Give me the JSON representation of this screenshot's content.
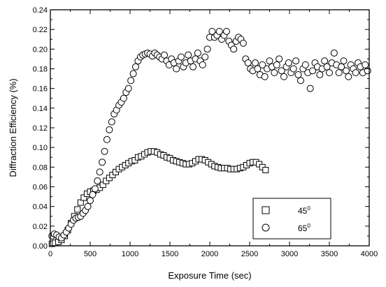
{
  "chart_data": {
    "type": "scatter",
    "title": "",
    "xlabel": "Exposure Time (sec)",
    "ylabel": "Diffraction Efficiency (%)",
    "xlim": [
      0,
      4000
    ],
    "ylim": [
      0,
      0.24
    ],
    "x_ticks": [
      0,
      500,
      1000,
      1500,
      2000,
      2500,
      3000,
      3500,
      4000
    ],
    "x_tick_labels": [
      "0",
      "500",
      "1000",
      "1500",
      "2000",
      "2500",
      "3000",
      "3500",
      "4000"
    ],
    "y_ticks": [
      0.0,
      0.02,
      0.04,
      0.06,
      0.08,
      0.1,
      0.12,
      0.14,
      0.16,
      0.18,
      0.2,
      0.22,
      0.24
    ],
    "y_tick_labels": [
      "0.00",
      "0.02",
      "0.04",
      "0.06",
      "0.08",
      "0.10",
      "0.12",
      "0.14",
      "0.16",
      "0.18",
      "0.20",
      "0.22",
      "0.24"
    ],
    "grid": false,
    "legend_position": "bottom-right",
    "series": [
      {
        "name": "45°",
        "name_base": "45",
        "name_sup": "0",
        "marker": "square",
        "points": [
          [
            20,
            0.002
          ],
          [
            60,
            0.003
          ],
          [
            100,
            0.004
          ],
          [
            140,
            0.006
          ],
          [
            180,
            0.01
          ],
          [
            220,
            0.016
          ],
          [
            260,
            0.023
          ],
          [
            300,
            0.03
          ],
          [
            340,
            0.037
          ],
          [
            380,
            0.044
          ],
          [
            420,
            0.049
          ],
          [
            460,
            0.053
          ],
          [
            500,
            0.055
          ],
          [
            540,
            0.056
          ],
          [
            580,
            0.057
          ],
          [
            620,
            0.059
          ],
          [
            660,
            0.062
          ],
          [
            700,
            0.066
          ],
          [
            740,
            0.069
          ],
          [
            780,
            0.072
          ],
          [
            820,
            0.075
          ],
          [
            860,
            0.078
          ],
          [
            900,
            0.08
          ],
          [
            940,
            0.082
          ],
          [
            980,
            0.084
          ],
          [
            1020,
            0.086
          ],
          [
            1060,
            0.087
          ],
          [
            1100,
            0.09
          ],
          [
            1140,
            0.091
          ],
          [
            1180,
            0.093
          ],
          [
            1220,
            0.095
          ],
          [
            1260,
            0.096
          ],
          [
            1300,
            0.096
          ],
          [
            1340,
            0.095
          ],
          [
            1380,
            0.093
          ],
          [
            1420,
            0.092
          ],
          [
            1460,
            0.09
          ],
          [
            1500,
            0.089
          ],
          [
            1540,
            0.087
          ],
          [
            1580,
            0.086
          ],
          [
            1620,
            0.085
          ],
          [
            1660,
            0.084
          ],
          [
            1700,
            0.083
          ],
          [
            1740,
            0.083
          ],
          [
            1780,
            0.084
          ],
          [
            1820,
            0.086
          ],
          [
            1860,
            0.088
          ],
          [
            1900,
            0.088
          ],
          [
            1940,
            0.087
          ],
          [
            1980,
            0.085
          ],
          [
            2020,
            0.083
          ],
          [
            2060,
            0.081
          ],
          [
            2100,
            0.08
          ],
          [
            2140,
            0.079
          ],
          [
            2180,
            0.079
          ],
          [
            2220,
            0.079
          ],
          [
            2260,
            0.078
          ],
          [
            2300,
            0.078
          ],
          [
            2340,
            0.078
          ],
          [
            2380,
            0.079
          ],
          [
            2420,
            0.08
          ],
          [
            2460,
            0.082
          ],
          [
            2500,
            0.084
          ],
          [
            2540,
            0.085
          ],
          [
            2580,
            0.085
          ],
          [
            2620,
            0.083
          ],
          [
            2660,
            0.08
          ],
          [
            2700,
            0.077
          ]
        ]
      },
      {
        "name": "65°",
        "name_base": "65",
        "name_sup": "0",
        "marker": "circle",
        "points": [
          [
            20,
            0.01
          ],
          [
            50,
            0.012
          ],
          [
            80,
            0.011
          ],
          [
            110,
            0.009
          ],
          [
            140,
            0.008
          ],
          [
            170,
            0.011
          ],
          [
            200,
            0.014
          ],
          [
            230,
            0.018
          ],
          [
            260,
            0.022
          ],
          [
            290,
            0.026
          ],
          [
            320,
            0.028
          ],
          [
            350,
            0.029
          ],
          [
            380,
            0.03
          ],
          [
            410,
            0.033
          ],
          [
            440,
            0.036
          ],
          [
            470,
            0.04
          ],
          [
            500,
            0.046
          ],
          [
            530,
            0.052
          ],
          [
            560,
            0.058
          ],
          [
            590,
            0.066
          ],
          [
            620,
            0.075
          ],
          [
            650,
            0.085
          ],
          [
            680,
            0.096
          ],
          [
            710,
            0.108
          ],
          [
            740,
            0.118
          ],
          [
            770,
            0.126
          ],
          [
            800,
            0.134
          ],
          [
            830,
            0.138
          ],
          [
            860,
            0.143
          ],
          [
            890,
            0.146
          ],
          [
            920,
            0.15
          ],
          [
            950,
            0.156
          ],
          [
            980,
            0.16
          ],
          [
            1010,
            0.168
          ],
          [
            1040,
            0.175
          ],
          [
            1070,
            0.182
          ],
          [
            1100,
            0.188
          ],
          [
            1130,
            0.192
          ],
          [
            1160,
            0.194
          ],
          [
            1190,
            0.195
          ],
          [
            1220,
            0.196
          ],
          [
            1250,
            0.195
          ],
          [
            1280,
            0.193
          ],
          [
            1310,
            0.196
          ],
          [
            1340,
            0.194
          ],
          [
            1370,
            0.192
          ],
          [
            1400,
            0.19
          ],
          [
            1430,
            0.194
          ],
          [
            1460,
            0.188
          ],
          [
            1490,
            0.184
          ],
          [
            1520,
            0.19
          ],
          [
            1550,
            0.186
          ],
          [
            1580,
            0.18
          ],
          [
            1610,
            0.188
          ],
          [
            1640,
            0.192
          ],
          [
            1670,
            0.182
          ],
          [
            1700,
            0.186
          ],
          [
            1730,
            0.194
          ],
          [
            1760,
            0.188
          ],
          [
            1790,
            0.182
          ],
          [
            1820,
            0.19
          ],
          [
            1850,
            0.196
          ],
          [
            1880,
            0.188
          ],
          [
            1910,
            0.184
          ],
          [
            1940,
            0.192
          ],
          [
            1970,
            0.2
          ],
          [
            2000,
            0.212
          ],
          [
            2030,
            0.218
          ],
          [
            2060,
            0.212
          ],
          [
            2090,
            0.214
          ],
          [
            2120,
            0.218
          ],
          [
            2150,
            0.21
          ],
          [
            2180,
            0.214
          ],
          [
            2210,
            0.218
          ],
          [
            2240,
            0.208
          ],
          [
            2270,
            0.204
          ],
          [
            2300,
            0.2
          ],
          [
            2330,
            0.208
          ],
          [
            2360,
            0.212
          ],
          [
            2390,
            0.21
          ],
          [
            2420,
            0.206
          ],
          [
            2450,
            0.19
          ],
          [
            2480,
            0.186
          ],
          [
            2510,
            0.18
          ],
          [
            2540,
            0.178
          ],
          [
            2570,
            0.186
          ],
          [
            2600,
            0.18
          ],
          [
            2630,
            0.174
          ],
          [
            2660,
            0.184
          ],
          [
            2690,
            0.172
          ],
          [
            2720,
            0.18
          ],
          [
            2750,
            0.188
          ],
          [
            2780,
            0.182
          ],
          [
            2810,
            0.176
          ],
          [
            2840,
            0.184
          ],
          [
            2870,
            0.19
          ],
          [
            2900,
            0.178
          ],
          [
            2930,
            0.172
          ],
          [
            2960,
            0.182
          ],
          [
            2990,
            0.186
          ],
          [
            3020,
            0.176
          ],
          [
            3050,
            0.18
          ],
          [
            3080,
            0.188
          ],
          [
            3110,
            0.174
          ],
          [
            3140,
            0.168
          ],
          [
            3170,
            0.18
          ],
          [
            3200,
            0.184
          ],
          [
            3230,
            0.176
          ],
          [
            3260,
            0.16
          ],
          [
            3290,
            0.178
          ],
          [
            3320,
            0.186
          ],
          [
            3350,
            0.182
          ],
          [
            3380,
            0.174
          ],
          [
            3410,
            0.18
          ],
          [
            3440,
            0.188
          ],
          [
            3470,
            0.182
          ],
          [
            3500,
            0.176
          ],
          [
            3530,
            0.186
          ],
          [
            3560,
            0.196
          ],
          [
            3590,
            0.184
          ],
          [
            3620,
            0.176
          ],
          [
            3650,
            0.182
          ],
          [
            3680,
            0.188
          ],
          [
            3710,
            0.178
          ],
          [
            3740,
            0.172
          ],
          [
            3770,
            0.184
          ],
          [
            3800,
            0.18
          ],
          [
            3830,
            0.176
          ],
          [
            3860,
            0.186
          ],
          [
            3890,
            0.182
          ],
          [
            3920,
            0.176
          ],
          [
            3950,
            0.184
          ],
          [
            3980,
            0.178
          ]
        ]
      }
    ]
  }
}
